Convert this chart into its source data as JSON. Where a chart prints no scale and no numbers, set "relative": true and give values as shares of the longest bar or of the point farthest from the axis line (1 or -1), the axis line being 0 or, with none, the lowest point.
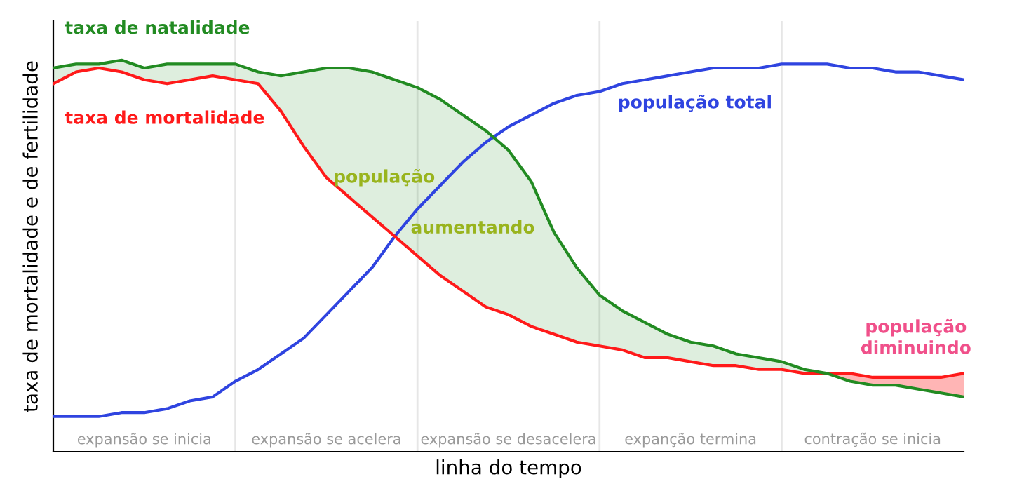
{
  "chart_data": {
    "type": "line",
    "relative": true,
    "xlabel": "linha do tempo",
    "ylabel": "taxa de mortalidade e de fertilidade",
    "categories": [
      null,
      null,
      null,
      null,
      null,
      null,
      null,
      null,
      null,
      null,
      null,
      null,
      null,
      null,
      null,
      null,
      null,
      null,
      null,
      null,
      null,
      null,
      null,
      null,
      null,
      null,
      null,
      null,
      null,
      null,
      null,
      null,
      null,
      null,
      null,
      null,
      null,
      null,
      null,
      null,
      null
    ],
    "series": [
      {
        "name": "taxa de natalidade",
        "color": "#228b22",
        "values": [
          0.98,
          0.99,
          0.99,
          1.0,
          0.98,
          0.99,
          0.99,
          0.99,
          0.99,
          0.97,
          0.96,
          0.97,
          0.98,
          0.98,
          0.97,
          0.95,
          0.93,
          0.9,
          0.86,
          0.82,
          0.77,
          0.69,
          0.56,
          0.47,
          0.4,
          0.36,
          0.33,
          0.3,
          0.28,
          0.27,
          0.25,
          0.24,
          0.23,
          0.21,
          0.2,
          0.18,
          0.17,
          0.17,
          0.16,
          0.15,
          0.14
        ],
        "upper": [
          0.98,
          0.99,
          0.99,
          1.0,
          0.98,
          0.99,
          0.99,
          0.99,
          0.99,
          0.97,
          0.96,
          0.97,
          0.98,
          0.98,
          0.97,
          0.95,
          0.93,
          0.9,
          0.86,
          0.82,
          0.77,
          0.69,
          0.56,
          0.47,
          0.4,
          0.36,
          0.33,
          0.3,
          0.28,
          0.27,
          0.25,
          0.24,
          0.23,
          0.21,
          0.2,
          null,
          null,
          null,
          null,
          null,
          null
        ],
        "lower": [
          0.94,
          0.97,
          0.98,
          0.97,
          0.95,
          0.94,
          0.95,
          0.96,
          0.95,
          0.94,
          0.87,
          0.78,
          0.7,
          0.65,
          0.6,
          0.55,
          0.5,
          0.45,
          0.41,
          0.37,
          0.35,
          0.32,
          0.3,
          0.28,
          0.27,
          0.26,
          0.24,
          0.24,
          0.23,
          0.22,
          0.22,
          0.21,
          0.21,
          0.2,
          0.2,
          null,
          null,
          null,
          null,
          null,
          null
        ]
      },
      {
        "name": "taxa de mortalidade",
        "color": "#ff1a1a",
        "values": [
          0.94,
          0.97,
          0.98,
          0.97,
          0.95,
          0.94,
          0.95,
          0.96,
          0.95,
          0.94,
          0.87,
          0.78,
          0.7,
          0.65,
          0.6,
          0.55,
          0.5,
          0.45,
          0.41,
          0.37,
          0.35,
          0.32,
          0.3,
          0.28,
          0.27,
          0.26,
          0.24,
          0.24,
          0.23,
          0.22,
          0.22,
          0.21,
          0.21,
          0.2,
          0.2,
          0.2,
          0.19,
          0.19,
          0.19,
          0.19,
          0.2
        ],
        "upper": [
          null,
          null,
          null,
          null,
          null,
          null,
          null,
          null,
          null,
          null,
          null,
          null,
          null,
          null,
          null,
          null,
          null,
          null,
          null,
          null,
          null,
          null,
          null,
          null,
          null,
          null,
          null,
          null,
          null,
          null,
          null,
          null,
          null,
          null,
          0.2,
          0.2,
          0.19,
          0.19,
          0.19,
          0.19,
          0.2
        ],
        "lower": [
          null,
          null,
          null,
          null,
          null,
          null,
          null,
          null,
          null,
          null,
          null,
          null,
          null,
          null,
          null,
          null,
          null,
          null,
          null,
          null,
          null,
          null,
          null,
          null,
          null,
          null,
          null,
          null,
          null,
          null,
          null,
          null,
          null,
          null,
          0.2,
          0.18,
          0.17,
          0.17,
          0.16,
          0.15,
          0.14
        ]
      },
      {
        "name": "população total",
        "color": "#2f44e0",
        "values": [
          0.09,
          0.09,
          0.09,
          0.1,
          0.1,
          0.11,
          0.13,
          0.14,
          0.18,
          0.21,
          0.25,
          0.29,
          0.35,
          0.41,
          0.47,
          0.55,
          0.62,
          0.68,
          0.74,
          0.79,
          0.83,
          0.86,
          0.89,
          0.91,
          0.92,
          0.94,
          0.95,
          0.96,
          0.97,
          0.98,
          0.98,
          0.98,
          0.99,
          0.99,
          0.99,
          0.98,
          0.98,
          0.97,
          0.97,
          0.96,
          0.95
        ]
      }
    ],
    "annotations": [
      "expansão se inicia",
      "expansão se acelera",
      "expansão se desacelera",
      "expanção termina",
      "contração se inicia",
      "população",
      "aumentando",
      "população\ndiminuindo"
    ],
    "grid": "x",
    "legend": false,
    "marker": "none",
    "line_style": "solid"
  }
}
